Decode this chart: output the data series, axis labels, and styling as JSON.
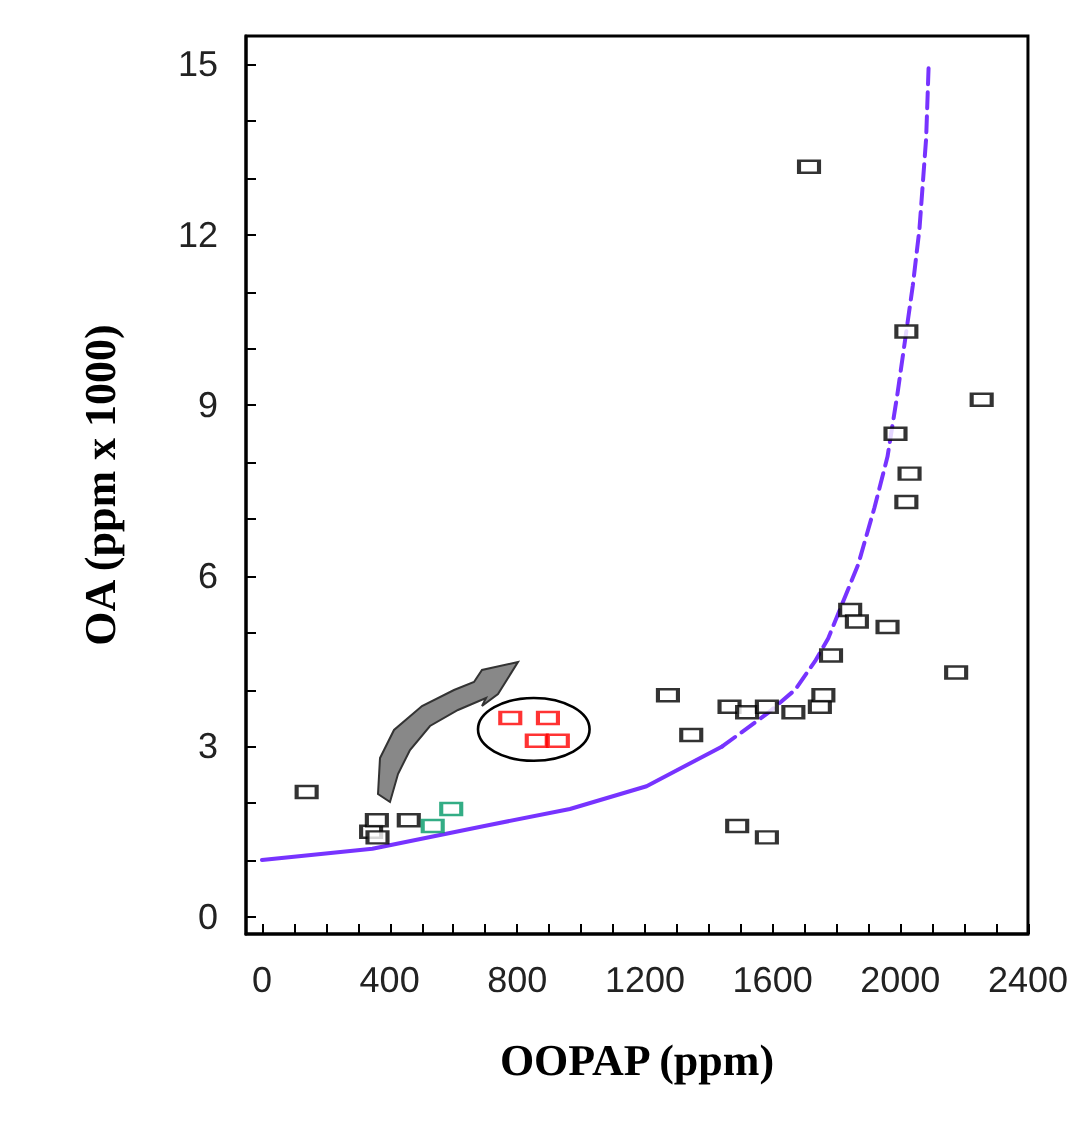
{
  "chart_data": {
    "type": "scatter",
    "xlabel": "OOPAP (ppm)",
    "ylabel": "OA (ppm x 1000)",
    "xlim": [
      -50,
      2400
    ],
    "ylim": [
      -0.3,
      15.5
    ],
    "xticks": [
      0,
      {
        "value": 100,
        "label": null
      },
      {
        "value": 200,
        "label": null
      },
      {
        "value": 300,
        "label": null
      },
      400,
      {
        "value": 500,
        "label": null
      },
      {
        "value": 600,
        "label": null
      },
      {
        "value": 700,
        "label": null
      },
      800,
      {
        "value": 900,
        "label": null
      },
      {
        "value": 1000,
        "label": null
      },
      {
        "value": 1100,
        "label": null
      },
      1200,
      {
        "value": 1300,
        "label": null
      },
      {
        "value": 1400,
        "label": null
      },
      {
        "value": 1500,
        "label": null
      },
      1600,
      {
        "value": 1700,
        "label": null
      },
      {
        "value": 1800,
        "label": null
      },
      {
        "value": 1900,
        "label": null
      },
      2000,
      {
        "value": 2100,
        "label": null
      },
      {
        "value": 2200,
        "label": null
      },
      {
        "value": 2300,
        "label": null
      },
      2400
    ],
    "yticks": [
      0,
      {
        "value": 1,
        "label": null
      },
      {
        "value": 2,
        "label": null
      },
      3,
      {
        "value": 4,
        "label": null
      },
      {
        "value": 5,
        "label": null
      },
      6,
      {
        "value": 7,
        "label": null
      },
      {
        "value": 8,
        "label": null
      },
      9,
      {
        "value": 10,
        "label": null
      },
      {
        "value": 11,
        "label": null
      },
      12,
      {
        "value": 13,
        "label": null
      },
      {
        "value": 14,
        "label": null
      },
      15
    ],
    "marker": "square",
    "series": [
      {
        "color": "#000000",
        "x": [
          140,
          342,
          360,
          362,
          460,
          1272,
          1345,
          1465,
          1520,
          1582,
          1665,
          1748,
          1759,
          1783,
          2175,
          1489,
          1582,
          1714,
          2019,
          2255,
          1985,
          2029,
          2019,
          1843,
          1864,
          1960
        ],
        "values": [
          2.2,
          1.5,
          1.7,
          1.4,
          1.7,
          3.9,
          3.2,
          3.7,
          3.6,
          3.7,
          3.6,
          3.7,
          3.9,
          4.6,
          4.3,
          1.6,
          1.4,
          13.2,
          10.3,
          9.1,
          8.5,
          7.8,
          7.3,
          5.4,
          5.2,
          5.1
        ]
      },
      {
        "color": "#009966",
        "x": [
          535,
          593
        ],
        "values": [
          1.6,
          1.9
        ]
      },
      {
        "color": "#ff0000",
        "x": [
          778,
          896,
          861,
          927
        ],
        "values": [
          3.5,
          3.5,
          3.1,
          3.1
        ]
      },
      {
        "type": "line",
        "color": "#7733ff",
        "line_style": "solid",
        "marker": "none",
        "x": [
          0,
          346,
          697,
          965,
          1205,
          1442
        ],
        "values": [
          1.0,
          1.2,
          1.6,
          1.9,
          2.3,
          3.0
        ]
      },
      {
        "type": "line",
        "color": "#7733ff",
        "line_style": "dashed",
        "marker": "none",
        "x": [
          1442,
          1588,
          1671,
          1733,
          1774,
          1868,
          1919,
          1960,
          1991,
          2039,
          2060,
          2081,
          2089
        ],
        "values": [
          3.0,
          3.6,
          4.0,
          4.5,
          4.9,
          6.2,
          7.2,
          8.1,
          9.2,
          11.1,
          12.1,
          13.7,
          15.0
        ]
      }
    ]
  }
}
